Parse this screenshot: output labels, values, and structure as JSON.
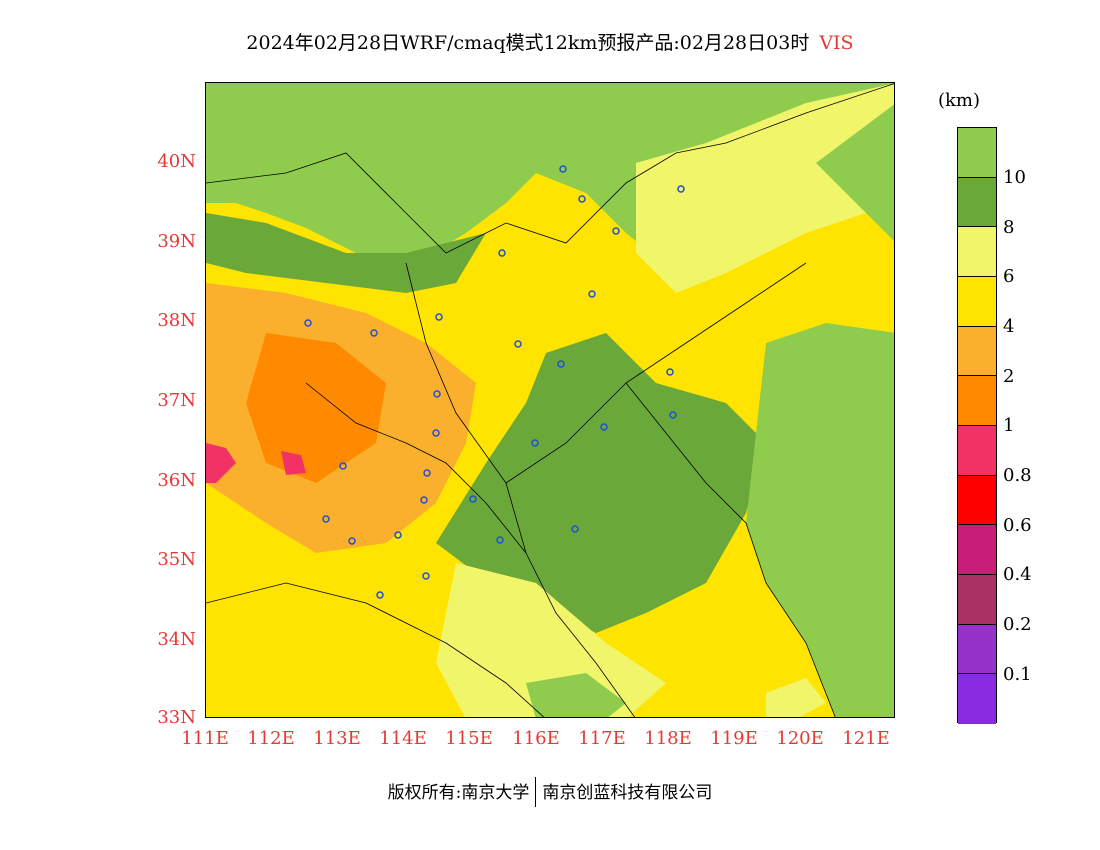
{
  "title": {
    "main": "2024年02月28日WRF/cmaq模式12km预报产品:02月28日03时",
    "variable": "VIS"
  },
  "map": {
    "lat_labels": [
      "40N",
      "39N",
      "38N",
      "37N",
      "36N",
      "35N",
      "34N",
      "33N"
    ],
    "lon_labels": [
      "111E",
      "112E",
      "113E",
      "114E",
      "115E",
      "116E",
      "117E",
      "118E",
      "119E",
      "120E",
      "121E"
    ]
  },
  "colorbar": {
    "unit": "(km)",
    "levels": [
      "10",
      "8",
      "6",
      "4",
      "2",
      "1",
      "0.8",
      "0.6",
      "0.4",
      "0.2",
      "0.1"
    ],
    "colors": [
      "#8fcc4e",
      "#6aa83a",
      "#f0f56a",
      "#ffe400",
      "#fbb02d",
      "#ff8a00",
      "#f03264",
      "#ff0000",
      "#c81e78",
      "#a83264",
      "#9632c8",
      "#8a2be2"
    ]
  },
  "footer": {
    "left": "版权所有:南京大学",
    "right": "南京创蓝科技有限公司"
  }
}
